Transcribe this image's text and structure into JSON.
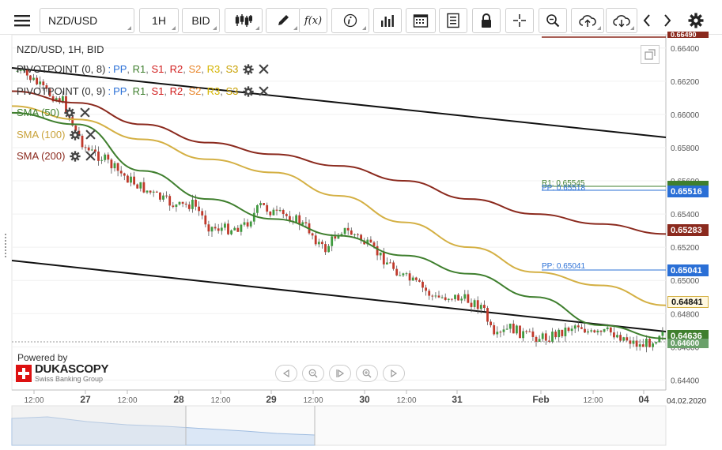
{
  "toolbar": {
    "symbol": "NZD/USD",
    "timeframe": "1H",
    "price_type": "BID",
    "fx_label": "f(x)"
  },
  "chart_title": "NZD/USD, 1H, BID",
  "legends": [
    {
      "name": "PIVOTPOINT (0, 8)",
      "levels_prefix": ": ",
      "levels": [
        "PP",
        "R1",
        "S1",
        "R2",
        "S2",
        "R3",
        "S3"
      ]
    },
    {
      "name": "PIVOTPOINT (0, 9)",
      "levels_prefix": ": ",
      "levels": [
        "PP",
        "R1",
        "S1",
        "R2",
        "S2",
        "R3",
        "S3"
      ]
    },
    {
      "name": "SMA (50)"
    },
    {
      "name": "SMA (100)"
    },
    {
      "name": "SMA (200)"
    }
  ],
  "colors": {
    "sma50": "#3f7f2e",
    "sma100": "#d4b044",
    "sma200": "#8b2a1e",
    "pp": "#2a6fd6",
    "r1": "#3f7f2e",
    "s1": "#d11d1d",
    "r2": "#d11d1d",
    "s2": "#e8862b",
    "r3": "#d4b400",
    "s3": "#c8a000",
    "bull": "#3f9b3f",
    "bear": "#c0392b",
    "trend": "#111111"
  },
  "pivot_labels": {
    "r1": "R1: 0.65545",
    "pp1": "PP: 0.65518",
    "pp2": "PP: 0.65041"
  },
  "price_badges": {
    "top": "0.66490",
    "b1": "0.65516",
    "b2": "0.65283",
    "b3": "0.65041",
    "b4": "0.64841",
    "b5": "0.64636",
    "b6": "0.64600"
  },
  "y_axis": {
    "ticks": [
      "0.66400",
      "0.66200",
      "0.66000",
      "0.65800",
      "0.65600",
      "0.65400",
      "0.65200",
      "0.65000",
      "0.64800",
      "0.64600",
      "0.64400"
    ]
  },
  "x_axis": {
    "labels": [
      "12:00",
      "27",
      "12:00",
      "28",
      "12:00",
      "29",
      "12:00",
      "30",
      "12:00",
      "31",
      "Feb",
      "12:00",
      "04"
    ],
    "current_date": "04.02.2020"
  },
  "branding": {
    "powered_by": "Powered by",
    "name": "DUKASCOPY",
    "tagline": "Swiss Banking Group"
  },
  "chart_data": {
    "type": "line",
    "title": "NZD/USD, 1H, BID",
    "ylim": [
      0.6434,
      0.6648
    ],
    "grid": true,
    "series": [
      {
        "name": "SMA (50)",
        "x": [
          0,
          10,
          20,
          30,
          40,
          50,
          60,
          70,
          80,
          90,
          100
        ],
        "values": [
          0.6601,
          0.6594,
          0.6566,
          0.6549,
          0.6537,
          0.6527,
          0.6515,
          0.6504,
          0.649,
          0.6473,
          0.6465
        ]
      },
      {
        "name": "SMA (100)",
        "x": [
          0,
          10,
          20,
          30,
          40,
          50,
          60,
          70,
          80,
          90,
          100
        ],
        "values": [
          0.6605,
          0.6597,
          0.6585,
          0.6573,
          0.6565,
          0.6551,
          0.6535,
          0.652,
          0.6505,
          0.6497,
          0.6485
        ]
      },
      {
        "name": "SMA (200)",
        "x": [
          0,
          10,
          20,
          30,
          40,
          50,
          60,
          70,
          80,
          90,
          100
        ],
        "values": [
          0.6614,
          0.6607,
          0.6594,
          0.6583,
          0.6576,
          0.6569,
          0.656,
          0.6549,
          0.654,
          0.6534,
          0.6528
        ]
      }
    ]
  }
}
